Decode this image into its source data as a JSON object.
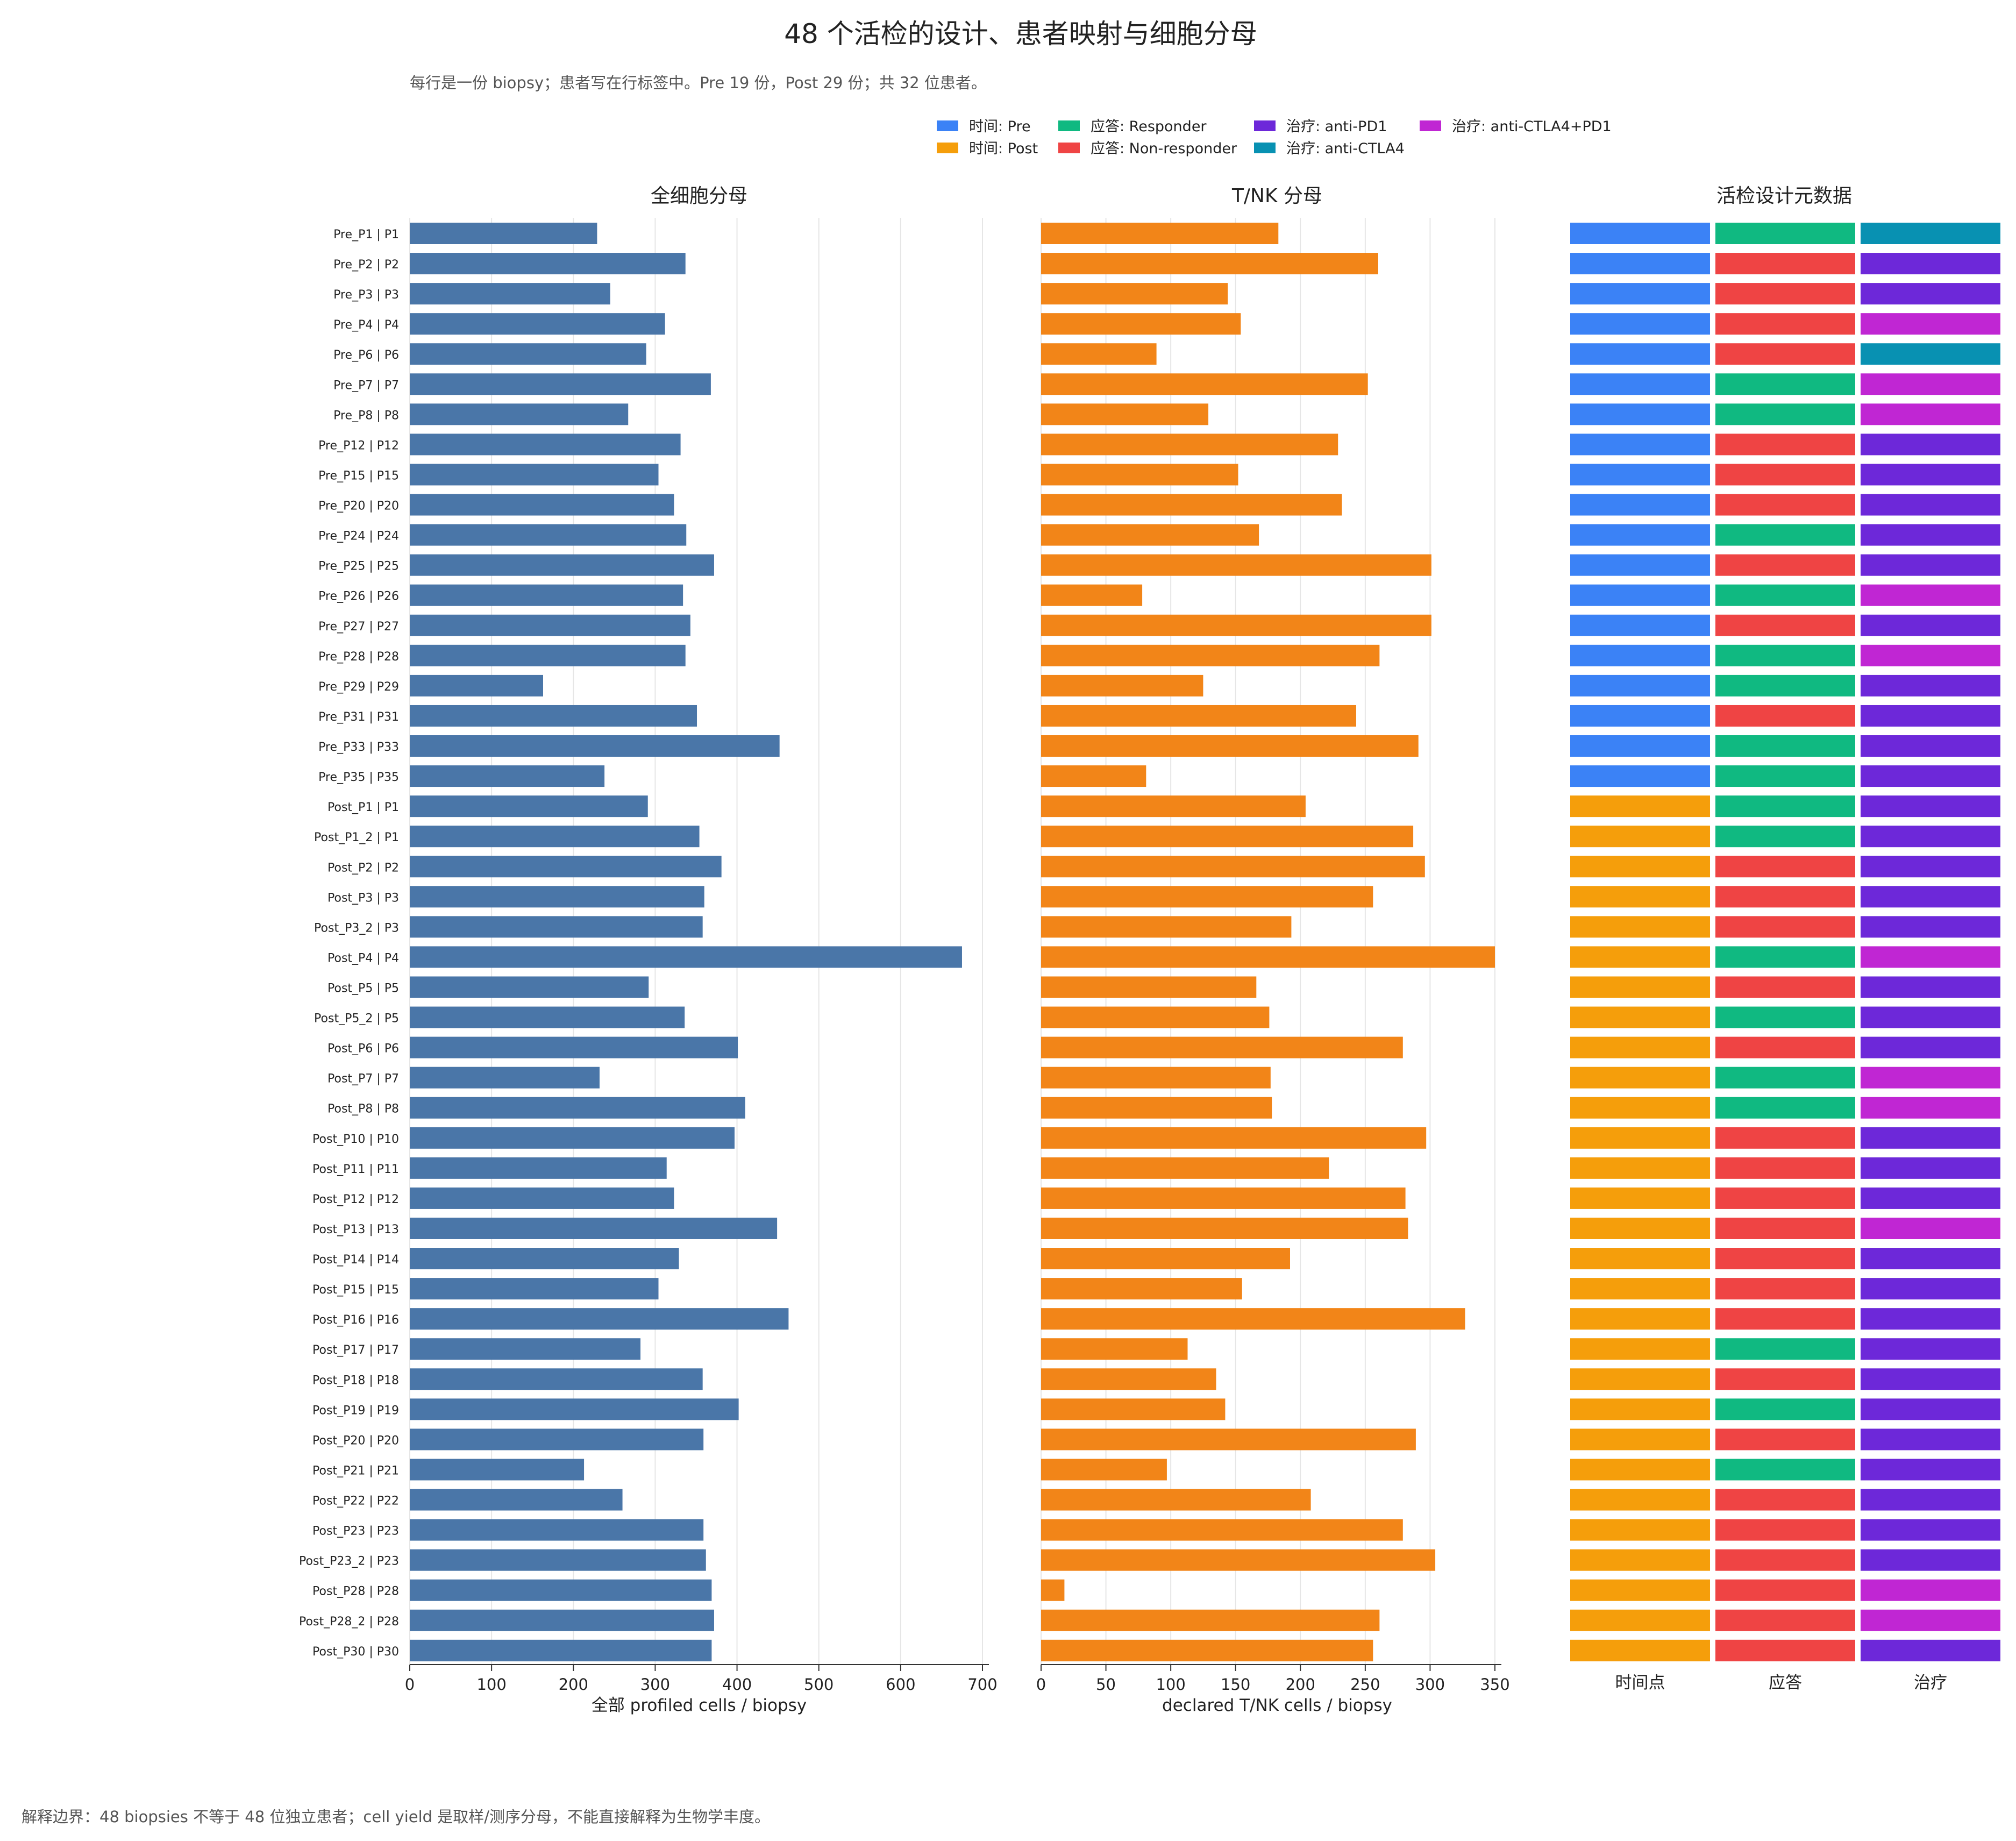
{
  "title": "48 个活检的设计、患者映射与细胞分母",
  "subtitle": "每行是一份 biopsy；患者写在行标签中。Pre 19 份，Post 29 份；共 32 位患者。",
  "footnote": "解释边界：48 biopsies 不等于 48 位独立患者；cell yield 是取样/测序分母，不能直接解释为生物学丰度。",
  "legend": [
    {
      "label": "时间: Pre",
      "color": "#3b82f6"
    },
    {
      "label": "时间: Post",
      "color": "#f59e0b"
    },
    {
      "label": "应答: Responder",
      "color": "#10b981"
    },
    {
      "label": "应答: Non-responder",
      "color": "#ef4444"
    },
    {
      "label": "治疗: anti-PD1",
      "color": "#6d28d9"
    },
    {
      "label": "治疗: anti-CTLA4",
      "color": "#0891b2"
    },
    {
      "label": "治疗: anti-CTLA4+PD1",
      "color": "#c026d3"
    }
  ],
  "colors": {
    "total_bar": "#4a76a8",
    "tnk_bar": "#f28518",
    "timepoint": {
      "Pre": "#3b82f6",
      "Post": "#f59e0b"
    },
    "response": {
      "Responder": "#10b981",
      "Non-responder": "#ef4444"
    },
    "treatment": {
      "anti-PD1": "#6d28d9",
      "anti-CTLA4": "#0891b2",
      "anti-CTLA4+PD1": "#c026d3"
    }
  },
  "chart_data": [
    {
      "type": "bar",
      "orientation": "horizontal",
      "title": "全细胞分母",
      "xlabel": "全部 profiled cells / biopsy",
      "xlim": [
        0,
        700
      ],
      "xticks": [
        0,
        100,
        200,
        300,
        400,
        500,
        600,
        700
      ],
      "grid": true,
      "categories": [
        "Pre_P1 | P1",
        "Pre_P2 | P2",
        "Pre_P3 | P3",
        "Pre_P4 | P4",
        "Pre_P6 | P6",
        "Pre_P7 | P7",
        "Pre_P8 | P8",
        "Pre_P12 | P12",
        "Pre_P15 | P15",
        "Pre_P20 | P20",
        "Pre_P24 | P24",
        "Pre_P25 | P25",
        "Pre_P26 | P26",
        "Pre_P27 | P27",
        "Pre_P28 | P28",
        "Pre_P29 | P29",
        "Pre_P31 | P31",
        "Pre_P33 | P33",
        "Pre_P35 | P35",
        "Post_P1 | P1",
        "Post_P1_2 | P1",
        "Post_P2 | P2",
        "Post_P3 | P3",
        "Post_P3_2 | P3",
        "Post_P4 | P4",
        "Post_P5 | P5",
        "Post_P5_2 | P5",
        "Post_P6 | P6",
        "Post_P7 | P7",
        "Post_P8 | P8",
        "Post_P10 | P10",
        "Post_P11 | P11",
        "Post_P12 | P12",
        "Post_P13 | P13",
        "Post_P14 | P14",
        "Post_P15 | P15",
        "Post_P16 | P16",
        "Post_P17 | P17",
        "Post_P18 | P18",
        "Post_P19 | P19",
        "Post_P20 | P20",
        "Post_P21 | P21",
        "Post_P22 | P22",
        "Post_P23 | P23",
        "Post_P23_2 | P23",
        "Post_P28 | P28",
        "Post_P28_2 | P28",
        "Post_P30 | P30"
      ],
      "values": [
        229,
        337,
        245,
        312,
        289,
        368,
        267,
        331,
        304,
        323,
        338,
        372,
        334,
        343,
        337,
        163,
        351,
        452,
        238,
        291,
        354,
        381,
        360,
        358,
        675,
        292,
        336,
        401,
        232,
        410,
        397,
        314,
        323,
        449,
        329,
        304,
        463,
        282,
        358,
        402,
        359,
        213,
        260,
        359,
        362,
        369,
        372,
        369
      ]
    },
    {
      "type": "bar",
      "orientation": "horizontal",
      "title": "T/NK 分母",
      "xlabel": "declared T/NK cells / biopsy",
      "xlim": [
        0,
        350
      ],
      "xticks": [
        0,
        50,
        100,
        150,
        200,
        250,
        300,
        350
      ],
      "grid": true,
      "categories": [
        "Pre_P1 | P1",
        "Pre_P2 | P2",
        "Pre_P3 | P3",
        "Pre_P4 | P4",
        "Pre_P6 | P6",
        "Pre_P7 | P7",
        "Pre_P8 | P8",
        "Pre_P12 | P12",
        "Pre_P15 | P15",
        "Pre_P20 | P20",
        "Pre_P24 | P24",
        "Pre_P25 | P25",
        "Pre_P26 | P26",
        "Pre_P27 | P27",
        "Pre_P28 | P28",
        "Pre_P29 | P29",
        "Pre_P31 | P31",
        "Pre_P33 | P33",
        "Pre_P35 | P35",
        "Post_P1 | P1",
        "Post_P1_2 | P1",
        "Post_P2 | P2",
        "Post_P3 | P3",
        "Post_P3_2 | P3",
        "Post_P4 | P4",
        "Post_P5 | P5",
        "Post_P5_2 | P5",
        "Post_P6 | P6",
        "Post_P7 | P7",
        "Post_P8 | P8",
        "Post_P10 | P10",
        "Post_P11 | P11",
        "Post_P12 | P12",
        "Post_P13 | P13",
        "Post_P14 | P14",
        "Post_P15 | P15",
        "Post_P16 | P16",
        "Post_P17 | P17",
        "Post_P18 | P18",
        "Post_P19 | P19",
        "Post_P20 | P20",
        "Post_P21 | P21",
        "Post_P22 | P22",
        "Post_P23 | P23",
        "Post_P23_2 | P23",
        "Post_P28 | P28",
        "Post_P28_2 | P28",
        "Post_P30 | P30"
      ],
      "values": [
        183,
        260,
        144,
        154,
        89,
        252,
        129,
        229,
        152,
        232,
        168,
        301,
        78,
        301,
        261,
        125,
        243,
        291,
        81,
        204,
        287,
        296,
        256,
        193,
        350,
        166,
        176,
        279,
        177,
        178,
        297,
        222,
        281,
        283,
        192,
        155,
        327,
        113,
        135,
        142,
        289,
        97,
        208,
        279,
        304,
        18,
        261,
        256
      ]
    },
    {
      "type": "heatmap",
      "title": "活检设计元数据",
      "columns": [
        "时间点",
        "应答",
        "治疗"
      ],
      "rows": [
        [
          "Pre",
          "Responder",
          "anti-CTLA4"
        ],
        [
          "Pre",
          "Non-responder",
          "anti-PD1"
        ],
        [
          "Pre",
          "Non-responder",
          "anti-PD1"
        ],
        [
          "Pre",
          "Non-responder",
          "anti-CTLA4+PD1"
        ],
        [
          "Pre",
          "Non-responder",
          "anti-CTLA4"
        ],
        [
          "Pre",
          "Responder",
          "anti-CTLA4+PD1"
        ],
        [
          "Pre",
          "Responder",
          "anti-CTLA4+PD1"
        ],
        [
          "Pre",
          "Non-responder",
          "anti-PD1"
        ],
        [
          "Pre",
          "Non-responder",
          "anti-PD1"
        ],
        [
          "Pre",
          "Non-responder",
          "anti-PD1"
        ],
        [
          "Pre",
          "Responder",
          "anti-PD1"
        ],
        [
          "Pre",
          "Non-responder",
          "anti-PD1"
        ],
        [
          "Pre",
          "Responder",
          "anti-CTLA4+PD1"
        ],
        [
          "Pre",
          "Non-responder",
          "anti-PD1"
        ],
        [
          "Pre",
          "Responder",
          "anti-CTLA4+PD1"
        ],
        [
          "Pre",
          "Responder",
          "anti-PD1"
        ],
        [
          "Pre",
          "Non-responder",
          "anti-PD1"
        ],
        [
          "Pre",
          "Responder",
          "anti-PD1"
        ],
        [
          "Pre",
          "Responder",
          "anti-PD1"
        ],
        [
          "Post",
          "Responder",
          "anti-PD1"
        ],
        [
          "Post",
          "Responder",
          "anti-PD1"
        ],
        [
          "Post",
          "Non-responder",
          "anti-PD1"
        ],
        [
          "Post",
          "Non-responder",
          "anti-PD1"
        ],
        [
          "Post",
          "Non-responder",
          "anti-PD1"
        ],
        [
          "Post",
          "Responder",
          "anti-CTLA4+PD1"
        ],
        [
          "Post",
          "Non-responder",
          "anti-PD1"
        ],
        [
          "Post",
          "Responder",
          "anti-PD1"
        ],
        [
          "Post",
          "Non-responder",
          "anti-PD1"
        ],
        [
          "Post",
          "Responder",
          "anti-CTLA4+PD1"
        ],
        [
          "Post",
          "Responder",
          "anti-CTLA4+PD1"
        ],
        [
          "Post",
          "Non-responder",
          "anti-PD1"
        ],
        [
          "Post",
          "Non-responder",
          "anti-PD1"
        ],
        [
          "Post",
          "Non-responder",
          "anti-PD1"
        ],
        [
          "Post",
          "Non-responder",
          "anti-CTLA4+PD1"
        ],
        [
          "Post",
          "Non-responder",
          "anti-PD1"
        ],
        [
          "Post",
          "Non-responder",
          "anti-PD1"
        ],
        [
          "Post",
          "Non-responder",
          "anti-PD1"
        ],
        [
          "Post",
          "Responder",
          "anti-PD1"
        ],
        [
          "Post",
          "Non-responder",
          "anti-PD1"
        ],
        [
          "Post",
          "Responder",
          "anti-PD1"
        ],
        [
          "Post",
          "Non-responder",
          "anti-PD1"
        ],
        [
          "Post",
          "Responder",
          "anti-PD1"
        ],
        [
          "Post",
          "Non-responder",
          "anti-PD1"
        ],
        [
          "Post",
          "Non-responder",
          "anti-PD1"
        ],
        [
          "Post",
          "Non-responder",
          "anti-PD1"
        ],
        [
          "Post",
          "Non-responder",
          "anti-CTLA4+PD1"
        ],
        [
          "Post",
          "Non-responder",
          "anti-CTLA4+PD1"
        ],
        [
          "Post",
          "Non-responder",
          "anti-PD1"
        ]
      ]
    }
  ]
}
